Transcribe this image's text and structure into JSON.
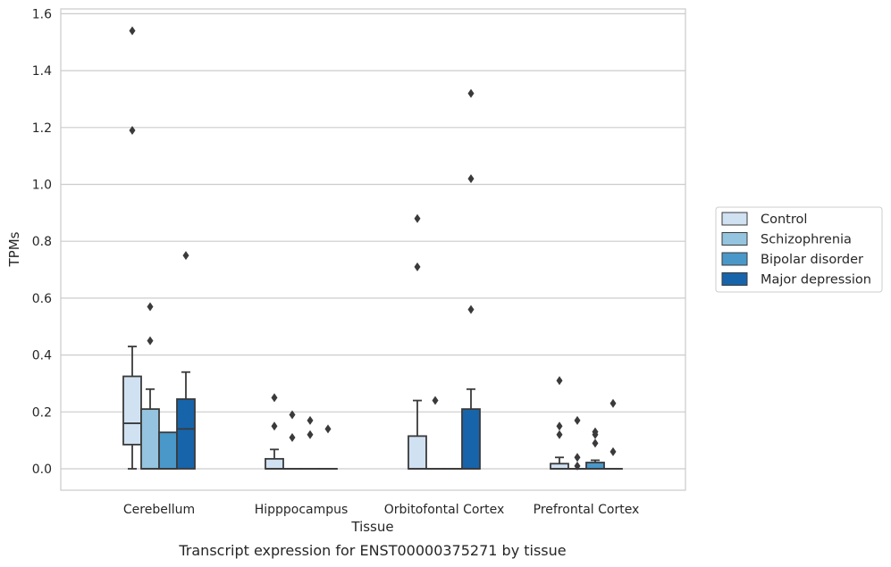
{
  "caption": "Transcript expression for ENST00000375271 by tissue",
  "chart_data": {
    "type": "box",
    "xlabel": "Tissue",
    "ylabel": "TPMs",
    "ylim": [
      -0.075,
      1.62
    ],
    "yticks": [
      "0.0",
      "0.2",
      "0.4",
      "0.6",
      "0.8",
      "1.0",
      "1.2",
      "1.4",
      "1.6"
    ],
    "grid": true,
    "legend_position": "right",
    "categories": [
      "Cerebellum",
      "Hipppocampus",
      "Orbitofontal Cortex",
      "Prefrontal Cortex"
    ],
    "series": [
      {
        "name": "Control",
        "color": "#d0e1f2",
        "boxes": [
          {
            "whislo": 0.0,
            "q1": 0.085,
            "med": 0.16,
            "q3": 0.325,
            "whishi": 0.43,
            "fliers": [
              1.19,
              1.54
            ]
          },
          {
            "whislo": 0.0,
            "q1": 0.0,
            "med": 0.0,
            "q3": 0.035,
            "whishi": 0.068,
            "fliers": [
              0.15,
              0.25
            ]
          },
          {
            "whislo": 0.0,
            "q1": 0.0,
            "med": 0.0,
            "q3": 0.115,
            "whishi": 0.24,
            "fliers": [
              0.71,
              0.88
            ]
          },
          {
            "whislo": 0.0,
            "q1": 0.0,
            "med": 0.0,
            "q3": 0.018,
            "whishi": 0.04,
            "fliers": [
              0.12,
              0.15,
              0.31
            ]
          }
        ]
      },
      {
        "name": "Schizophrenia",
        "color": "#94c4df",
        "boxes": [
          {
            "whislo": 0.0,
            "q1": 0.0,
            "med": 0.0,
            "q3": 0.21,
            "whishi": 0.28,
            "fliers": [
              0.45,
              0.57
            ]
          },
          {
            "whislo": 0.0,
            "q1": 0.0,
            "med": 0.0,
            "q3": 0.0,
            "whishi": 0.0,
            "fliers": [
              0.11,
              0.19
            ]
          },
          {
            "whislo": 0.0,
            "q1": 0.0,
            "med": 0.0,
            "q3": 0.0,
            "whishi": 0.0,
            "fliers": [
              0.24
            ]
          },
          {
            "whislo": 0.0,
            "q1": 0.0,
            "med": 0.0,
            "q3": 0.0,
            "whishi": 0.0,
            "fliers": [
              0.01,
              0.04,
              0.17
            ]
          }
        ]
      },
      {
        "name": "Bipolar disorder",
        "color": "#4a98c9",
        "boxes": [
          {
            "whislo": 0.0,
            "q1": 0.0,
            "med": 0.0,
            "q3": 0.128,
            "whishi": 0.128,
            "fliers": []
          },
          {
            "whislo": 0.0,
            "q1": 0.0,
            "med": 0.0,
            "q3": 0.0,
            "whishi": 0.0,
            "fliers": [
              0.12,
              0.17
            ]
          },
          {
            "whislo": 0.0,
            "q1": 0.0,
            "med": 0.0,
            "q3": 0.0,
            "whishi": 0.0,
            "fliers": []
          },
          {
            "whislo": 0.0,
            "q1": 0.0,
            "med": 0.0,
            "q3": 0.022,
            "whishi": 0.03,
            "fliers": [
              0.09,
              0.12,
              0.13
            ]
          }
        ]
      },
      {
        "name": "Major depression",
        "color": "#1764ab",
        "boxes": [
          {
            "whislo": 0.0,
            "q1": 0.0,
            "med": 0.14,
            "q3": 0.245,
            "whishi": 0.34,
            "fliers": [
              0.75
            ]
          },
          {
            "whislo": 0.0,
            "q1": 0.0,
            "med": 0.0,
            "q3": 0.0,
            "whishi": 0.0,
            "fliers": [
              0.14
            ]
          },
          {
            "whislo": 0.0,
            "q1": 0.0,
            "med": 0.0,
            "q3": 0.21,
            "whishi": 0.28,
            "fliers": [
              0.56,
              1.02,
              1.32
            ]
          },
          {
            "whislo": 0.0,
            "q1": 0.0,
            "med": 0.0,
            "q3": 0.0,
            "whishi": 0.0,
            "fliers": [
              0.06,
              0.23
            ]
          }
        ]
      }
    ]
  }
}
